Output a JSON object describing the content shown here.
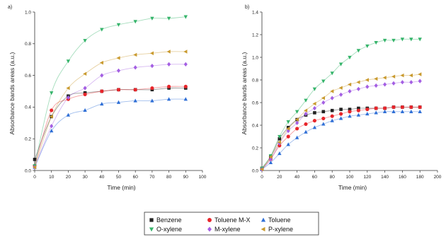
{
  "chart_data": [
    {
      "type": "scatter",
      "panel_label": "a)",
      "xlabel": "Time (min)",
      "ylabel": "Absorbance bands areas (a.u.)",
      "xlim": [
        0,
        100
      ],
      "ylim": [
        0,
        1.0
      ],
      "xticks": [
        0,
        10,
        20,
        30,
        40,
        50,
        60,
        70,
        80,
        90,
        100
      ],
      "yticks": [
        0.0,
        0.2,
        0.4,
        0.6,
        0.8,
        1.0
      ],
      "ytick_labels": [
        "0.0",
        "0.2",
        "0.4",
        "0.6",
        "0.8",
        "1.0"
      ],
      "grid": false,
      "fitted_curves": true,
      "x": [
        0,
        10,
        20,
        30,
        40,
        50,
        60,
        70,
        80,
        90
      ],
      "series": [
        {
          "name": "Benzene",
          "values": [
            0.07,
            0.34,
            0.47,
            0.49,
            0.5,
            0.51,
            0.51,
            0.51,
            0.52,
            0.52
          ]
        },
        {
          "name": "Toluene M-X",
          "values": [
            0.03,
            0.38,
            0.45,
            0.48,
            0.5,
            0.51,
            0.51,
            0.52,
            0.53,
            0.53
          ]
        },
        {
          "name": "Toluene",
          "values": [
            0.02,
            0.25,
            0.35,
            0.38,
            0.42,
            0.43,
            0.44,
            0.44,
            0.45,
            0.45
          ]
        },
        {
          "name": "O-xylene",
          "values": [
            0.03,
            0.49,
            0.69,
            0.82,
            0.89,
            0.92,
            0.94,
            0.96,
            0.96,
            0.97
          ]
        },
        {
          "name": "M-xylene",
          "values": [
            0.02,
            0.28,
            0.46,
            0.52,
            0.6,
            0.63,
            0.65,
            0.66,
            0.67,
            0.67
          ]
        },
        {
          "name": "P-xylene",
          "values": [
            0.02,
            0.34,
            0.52,
            0.61,
            0.68,
            0.71,
            0.73,
            0.74,
            0.75,
            0.75
          ]
        }
      ]
    },
    {
      "type": "scatter",
      "panel_label": "b)",
      "xlabel": "Time (min)",
      "ylabel": "Absorbance bands areas (a.u.)",
      "xlim": [
        0,
        200
      ],
      "ylim": [
        0,
        1.4
      ],
      "xticks": [
        0,
        20,
        40,
        60,
        80,
        100,
        120,
        140,
        160,
        180,
        200
      ],
      "yticks": [
        0.0,
        0.2,
        0.4,
        0.6,
        0.8,
        1.0,
        1.2,
        1.4
      ],
      "ytick_labels": [
        "0.0",
        "0.2",
        "0.4",
        "0.6",
        "0.8",
        "1.0",
        "1.2",
        "1.4"
      ],
      "grid": false,
      "fitted_curves": true,
      "x": [
        0,
        10,
        20,
        30,
        40,
        50,
        60,
        70,
        80,
        90,
        100,
        110,
        120,
        130,
        140,
        150,
        160,
        170,
        180
      ],
      "series": [
        {
          "name": "Benzene",
          "values": [
            0.02,
            0.12,
            0.28,
            0.38,
            0.45,
            0.49,
            0.51,
            0.52,
            0.53,
            0.54,
            0.54,
            0.55,
            0.55,
            0.55,
            0.55,
            0.56,
            0.56,
            0.56,
            0.56
          ]
        },
        {
          "name": "Toluene M-X",
          "values": [
            0.01,
            0.1,
            0.22,
            0.3,
            0.37,
            0.41,
            0.44,
            0.46,
            0.48,
            0.5,
            0.52,
            0.53,
            0.54,
            0.55,
            0.55,
            0.56,
            0.56,
            0.56,
            0.56
          ]
        },
        {
          "name": "Toluene",
          "values": [
            0.01,
            0.07,
            0.15,
            0.23,
            0.29,
            0.34,
            0.38,
            0.41,
            0.44,
            0.46,
            0.48,
            0.49,
            0.5,
            0.51,
            0.52,
            0.52,
            0.52,
            0.52,
            0.52
          ]
        },
        {
          "name": "O-xylene",
          "values": [
            0.02,
            0.13,
            0.3,
            0.43,
            0.52,
            0.62,
            0.72,
            0.79,
            0.86,
            0.94,
            1.0,
            1.06,
            1.1,
            1.13,
            1.15,
            1.15,
            1.16,
            1.16,
            1.16
          ]
        },
        {
          "name": "M-xylene",
          "values": [
            0.01,
            0.1,
            0.24,
            0.35,
            0.42,
            0.5,
            0.55,
            0.6,
            0.64,
            0.67,
            0.7,
            0.72,
            0.74,
            0.75,
            0.76,
            0.77,
            0.78,
            0.78,
            0.79
          ]
        },
        {
          "name": "P-xylene",
          "values": [
            0.01,
            0.12,
            0.25,
            0.37,
            0.45,
            0.53,
            0.59,
            0.64,
            0.7,
            0.73,
            0.76,
            0.78,
            0.8,
            0.81,
            0.82,
            0.83,
            0.84,
            0.84,
            0.85
          ]
        }
      ]
    }
  ],
  "legend": {
    "placement": "bottom-center",
    "items": [
      {
        "label": "Benzene",
        "marker": "square",
        "color": "#222222"
      },
      {
        "label": "Toluene M-X",
        "marker": "circle",
        "color": "#e8252b"
      },
      {
        "label": "Toluene",
        "marker": "triangle-up",
        "color": "#2f6fd6"
      },
      {
        "label": "O-xylene",
        "marker": "triangle-down",
        "color": "#35b46a"
      },
      {
        "label": "M-xylene",
        "marker": "diamond",
        "color": "#a45fe3"
      },
      {
        "label": "P-xylene",
        "marker": "triangle-left",
        "color": "#c99a2e"
      }
    ]
  }
}
